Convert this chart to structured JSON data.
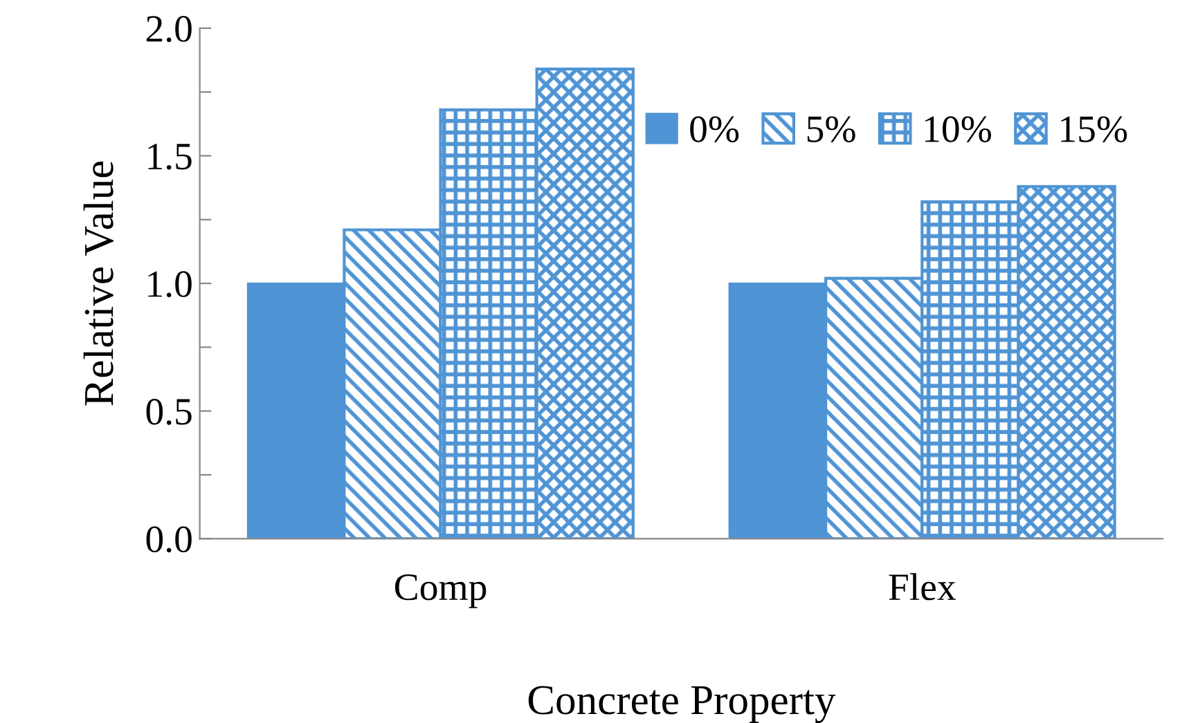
{
  "chart_data": {
    "type": "bar",
    "xlabel": "Concrete Property",
    "ylabel": "Relative Value",
    "categories": [
      "Comp",
      "Flex"
    ],
    "series": [
      {
        "name": "0%",
        "color": "#4f94d4",
        "values": [
          1.0,
          1.0
        ]
      },
      {
        "name": "5%",
        "color": "#4f94d4",
        "values": [
          1.21,
          1.02
        ]
      },
      {
        "name": "10%",
        "color": "#4f94d4",
        "values": [
          1.68,
          1.32
        ]
      },
      {
        "name": "15%",
        "color": "#4f94d4",
        "values": [
          1.84,
          1.38
        ]
      }
    ],
    "ylim": [
      0,
      2
    ],
    "yticks": [
      {
        "value": 0,
        "label": "0.0"
      },
      {
        "value": 0.25,
        "label": null
      },
      0.5,
      {
        "value": 0.75,
        "label": null
      },
      {
        "value": 1,
        "label": "1.0"
      },
      {
        "value": 1.25,
        "label": null
      },
      1.5,
      {
        "value": 1.75,
        "label": null
      },
      {
        "value": 2,
        "label": "2.0"
      }
    ],
    "grid": false,
    "legend": "top right"
  }
}
